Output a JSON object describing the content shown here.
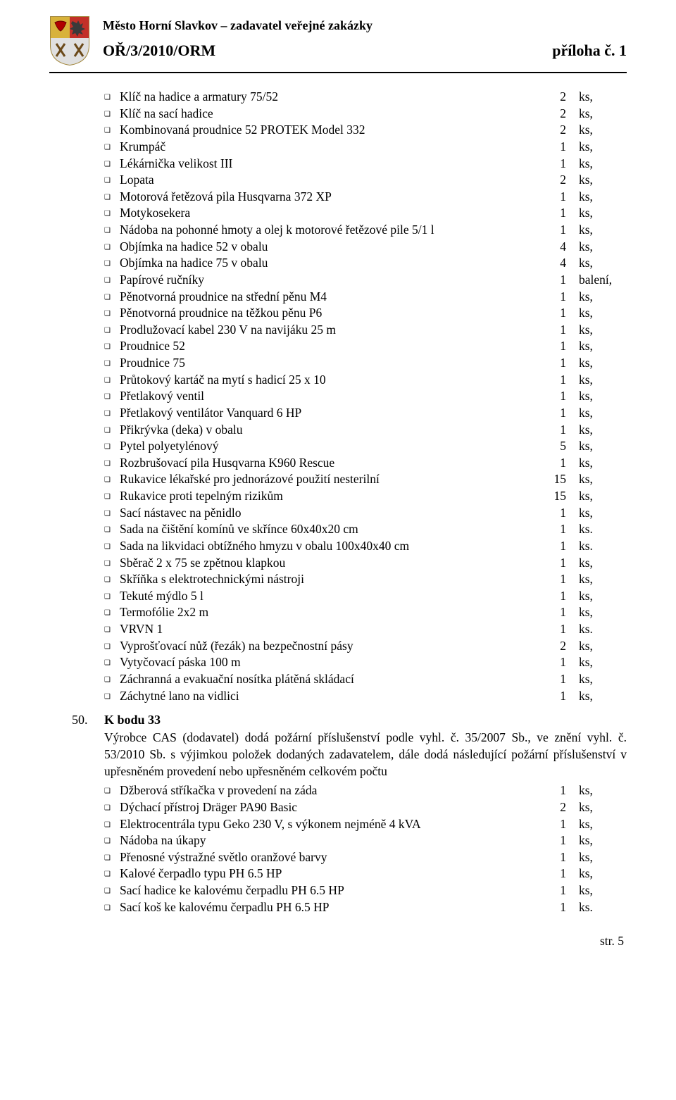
{
  "header": {
    "org": "Město Horní Slavkov – zadavatel veřejné zakázky",
    "code": "OŘ/3/2010/ORM",
    "annex": "příloha č. 1"
  },
  "list1": [
    {
      "label": "Klíč na hadice a armatury 75/52",
      "qty": "2",
      "unit": "ks,"
    },
    {
      "label": "Klíč na sací hadice",
      "qty": "2",
      "unit": "ks,"
    },
    {
      "label": "Kombinovaná proudnice 52 PROTEK Model 332",
      "qty": "2",
      "unit": "ks,"
    },
    {
      "label": "Krumpáč",
      "qty": "1",
      "unit": "ks,"
    },
    {
      "label": "Lékárnička velikost III",
      "qty": "1",
      "unit": "ks,"
    },
    {
      "label": "Lopata",
      "qty": "2",
      "unit": "ks,"
    },
    {
      "label": "Motorová řetězová pila Husqvarna 372 XP",
      "qty": "1",
      "unit": "ks,"
    },
    {
      "label": "Motykosekera",
      "qty": "1",
      "unit": "ks,"
    },
    {
      "label": "Nádoba na pohonné hmoty a olej k motorové řetězové pile 5/1 l",
      "qty": "1",
      "unit": "ks,"
    },
    {
      "label": "Objímka na hadice 52 v obalu",
      "qty": "4",
      "unit": "ks,"
    },
    {
      "label": "Objímka na hadice 75 v obalu",
      "qty": "4",
      "unit": "ks,"
    },
    {
      "label": "Papírové ručníky",
      "qty": "1",
      "unit": "balení,"
    },
    {
      "label": "Pěnotvorná proudnice na střední pěnu M4",
      "qty": "1",
      "unit": "ks,"
    },
    {
      "label": "Pěnotvorná proudnice na těžkou pěnu P6",
      "qty": "1",
      "unit": "ks,"
    },
    {
      "label": "Prodlužovací kabel 230 V na navijáku 25 m",
      "qty": "1",
      "unit": "ks,"
    },
    {
      "label": "Proudnice 52",
      "qty": "1",
      "unit": "ks,"
    },
    {
      "label": "Proudnice 75",
      "qty": "1",
      "unit": "ks,"
    },
    {
      "label": "Průtokový kartáč na mytí s hadicí 25 x 10",
      "qty": "1",
      "unit": "ks,"
    },
    {
      "label": "Přetlakový ventil",
      "qty": "1",
      "unit": "ks,"
    },
    {
      "label": "Přetlakový ventilátor Vanquard 6 HP",
      "qty": "1",
      "unit": "ks,"
    },
    {
      "label": "Přikrývka (deka) v obalu",
      "qty": "1",
      "unit": "ks,"
    },
    {
      "label": "Pytel polyetylénový",
      "qty": "5",
      "unit": "ks,"
    },
    {
      "label": "Rozbrušovací pila Husqvarna K960 Rescue",
      "qty": "1",
      "unit": "ks,"
    },
    {
      "label": "Rukavice lékařské pro jednorázové použití nesterilní",
      "qty": "15",
      "unit": "ks,"
    },
    {
      "label": "Rukavice proti tepelným rizikům",
      "qty": "15",
      "unit": "ks,"
    },
    {
      "label": "Sací nástavec na pěnidlo",
      "qty": "1",
      "unit": "ks,"
    },
    {
      "label": "Sada na čištění komínů ve skřínce 60x40x20 cm",
      "qty": "1",
      "unit": "ks."
    },
    {
      "label": "Sada na likvidaci obtížného hmyzu v obalu 100x40x40 cm",
      "qty": "1",
      "unit": "ks."
    },
    {
      "label": "Sběrač 2 x 75 se zpětnou klapkou",
      "qty": "1",
      "unit": "ks,"
    },
    {
      "label": "Skříňka s elektrotechnickými nástroji",
      "qty": "1",
      "unit": "ks,"
    },
    {
      "label": "Tekuté mýdlo 5 l",
      "qty": "1",
      "unit": "ks,"
    },
    {
      "label": "Termofólie 2x2 m",
      "qty": "1",
      "unit": "ks,"
    },
    {
      "label": "VRVN 1",
      "qty": "1",
      "unit": "ks."
    },
    {
      "label": "Vyprošťovací nůž (řezák) na bezpečnostní pásy",
      "qty": "2",
      "unit": "ks,"
    },
    {
      "label": "Vytyčovací páska 100 m",
      "qty": "1",
      "unit": "ks,"
    },
    {
      "label": "Záchranná a evakuační nosítka plátěná skládací",
      "qty": "1",
      "unit": "ks,"
    },
    {
      "label": "Záchytné lano na vidlici",
      "qty": "1",
      "unit": "ks,"
    }
  ],
  "section": {
    "num": "50.",
    "title": "K bodu 33",
    "para": "Výrobce CAS (dodavatel) dodá požární příslušenství podle vyhl. č. 35/2007 Sb., ve znění vyhl. č. 53/2010 Sb. s výjimkou položek dodaných zadavatelem, dále dodá následující požární příslušenství v upřesněném provedení nebo upřesněném celkovém počtu"
  },
  "list2": [
    {
      "label": "Džberová stříkačka v provedení na záda",
      "qty": "1",
      "unit": "ks,"
    },
    {
      "label": "Dýchací přístroj Dräger PA90 Basic",
      "qty": "2",
      "unit": "ks,"
    },
    {
      "label": "Elektrocentrála typu Geko 230 V, s výkonem nejméně 4 kVA",
      "qty": "1",
      "unit": "ks,"
    },
    {
      "label": "Nádoba na úkapy",
      "qty": "1",
      "unit": "ks,"
    },
    {
      "label": "Přenosné výstražné světlo oranžové barvy",
      "qty": "1",
      "unit": "ks,"
    },
    {
      "label": "Kalové čerpadlo typu PH 6.5 HP",
      "qty": "1",
      "unit": "ks,"
    },
    {
      "label": "Sací hadice ke kalovému čerpadlu PH 6.5 HP",
      "qty": "1",
      "unit": "ks,"
    },
    {
      "label": "Sací koš ke kalovému čerpadlu PH 6.5 HP",
      "qty": "1",
      "unit": "ks."
    }
  ],
  "footer": {
    "page": "str. 5"
  },
  "colors": {
    "text": "#000000",
    "background": "#ffffff",
    "rule": "#000000"
  }
}
